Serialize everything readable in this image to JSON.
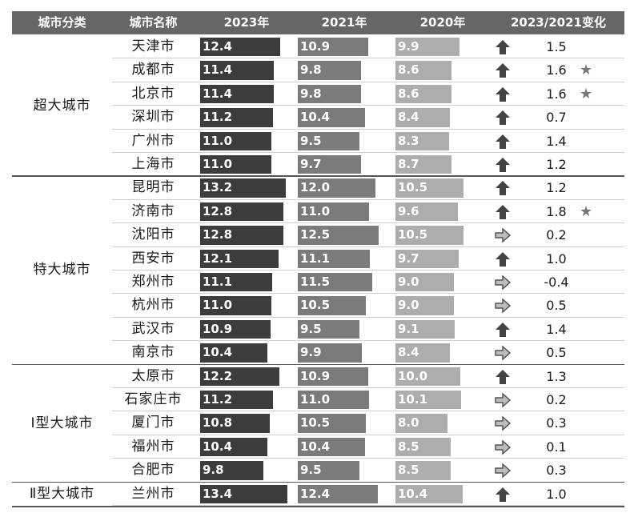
{
  "headers": {
    "category": "城市分类",
    "city": "城市名称",
    "y2023": "2023年",
    "y2021": "2021年",
    "y2020": "2020年",
    "change": "2023/2021变化"
  },
  "colors": {
    "bar2023": "#3c3c3c",
    "bar2021": "#7b7b7b",
    "bar2020": "#adadad",
    "header_bg": "#666666"
  },
  "groups": [
    {
      "label": "超大城市",
      "rows": 6
    },
    {
      "label": "特大城市",
      "rows": 8
    },
    {
      "label": "Ⅰ型大城市",
      "rows": 5
    },
    {
      "label": "Ⅱ型大城市",
      "rows": 1
    }
  ],
  "chart_data": {
    "type": "table",
    "columns": [
      "城市分类",
      "城市名称",
      "2023年",
      "2021年",
      "2020年",
      "2023/2021变化"
    ],
    "rows": [
      {
        "category": "超大城市",
        "city": "天津市",
        "v2023": 12.4,
        "v2021": 10.9,
        "v2020": 9.9,
        "change": "1.5",
        "trend": "up",
        "star": false
      },
      {
        "category": "超大城市",
        "city": "成都市",
        "v2023": 11.4,
        "v2021": 9.8,
        "v2020": 8.6,
        "change": "1.6",
        "trend": "up",
        "star": true
      },
      {
        "category": "超大城市",
        "city": "北京市",
        "v2023": 11.4,
        "v2021": 9.8,
        "v2020": 8.6,
        "change": "1.6",
        "trend": "up",
        "star": true
      },
      {
        "category": "超大城市",
        "city": "深圳市",
        "v2023": 11.2,
        "v2021": 10.4,
        "v2020": 8.4,
        "change": "0.7",
        "trend": "up",
        "star": false
      },
      {
        "category": "超大城市",
        "city": "广州市",
        "v2023": 11.0,
        "v2021": 9.5,
        "v2020": 8.3,
        "change": "1.4",
        "trend": "up",
        "star": false
      },
      {
        "category": "超大城市",
        "city": "上海市",
        "v2023": 11.0,
        "v2021": 9.7,
        "v2020": 8.7,
        "change": "1.2",
        "trend": "up",
        "star": false
      },
      {
        "category": "特大城市",
        "city": "昆明市",
        "v2023": 13.2,
        "v2021": 12.0,
        "v2020": 10.5,
        "change": "1.2",
        "trend": "up",
        "star": false
      },
      {
        "category": "特大城市",
        "city": "济南市",
        "v2023": 12.8,
        "v2021": 11.0,
        "v2020": 9.6,
        "change": "1.8",
        "trend": "up",
        "star": true
      },
      {
        "category": "特大城市",
        "city": "沈阳市",
        "v2023": 12.8,
        "v2021": 12.5,
        "v2020": 10.5,
        "change": "0.2",
        "trend": "flat",
        "star": false
      },
      {
        "category": "特大城市",
        "city": "西安市",
        "v2023": 12.1,
        "v2021": 11.1,
        "v2020": 9.7,
        "change": "1.0",
        "trend": "up",
        "star": false
      },
      {
        "category": "特大城市",
        "city": "郑州市",
        "v2023": 11.1,
        "v2021": 11.5,
        "v2020": 9.0,
        "change": "-0.4",
        "trend": "flat",
        "star": false
      },
      {
        "category": "特大城市",
        "city": "杭州市",
        "v2023": 11.0,
        "v2021": 10.5,
        "v2020": 9.0,
        "change": "0.5",
        "trend": "flat",
        "star": false
      },
      {
        "category": "特大城市",
        "city": "武汉市",
        "v2023": 10.9,
        "v2021": 9.5,
        "v2020": 9.1,
        "change": "1.4",
        "trend": "up",
        "star": false
      },
      {
        "category": "特大城市",
        "city": "南京市",
        "v2023": 10.4,
        "v2021": 9.9,
        "v2020": 8.4,
        "change": "0.5",
        "trend": "flat",
        "star": false
      },
      {
        "category": "Ⅰ型大城市",
        "city": "太原市",
        "v2023": 12.2,
        "v2021": 10.9,
        "v2020": 10.0,
        "change": "1.3",
        "trend": "up",
        "star": false
      },
      {
        "category": "Ⅰ型大城市",
        "city": "石家庄市",
        "v2023": 11.2,
        "v2021": 11.0,
        "v2020": 10.1,
        "change": "0.2",
        "trend": "flat",
        "star": false
      },
      {
        "category": "Ⅰ型大城市",
        "city": "厦门市",
        "v2023": 10.8,
        "v2021": 10.5,
        "v2020": 8.0,
        "change": "0.3",
        "trend": "flat",
        "star": false
      },
      {
        "category": "Ⅰ型大城市",
        "city": "福州市",
        "v2023": 10.4,
        "v2021": 10.4,
        "v2020": 8.5,
        "change": "0.1",
        "trend": "flat",
        "star": false
      },
      {
        "category": "Ⅰ型大城市",
        "city": "合肥市",
        "v2023": 9.8,
        "v2021": 9.5,
        "v2020": 8.5,
        "change": "0.3",
        "trend": "flat",
        "star": false
      },
      {
        "category": "Ⅱ型大城市",
        "city": "兰州市",
        "v2023": 13.4,
        "v2021": 12.4,
        "v2020": 10.4,
        "change": "1.0",
        "trend": "up",
        "star": false
      }
    ]
  }
}
